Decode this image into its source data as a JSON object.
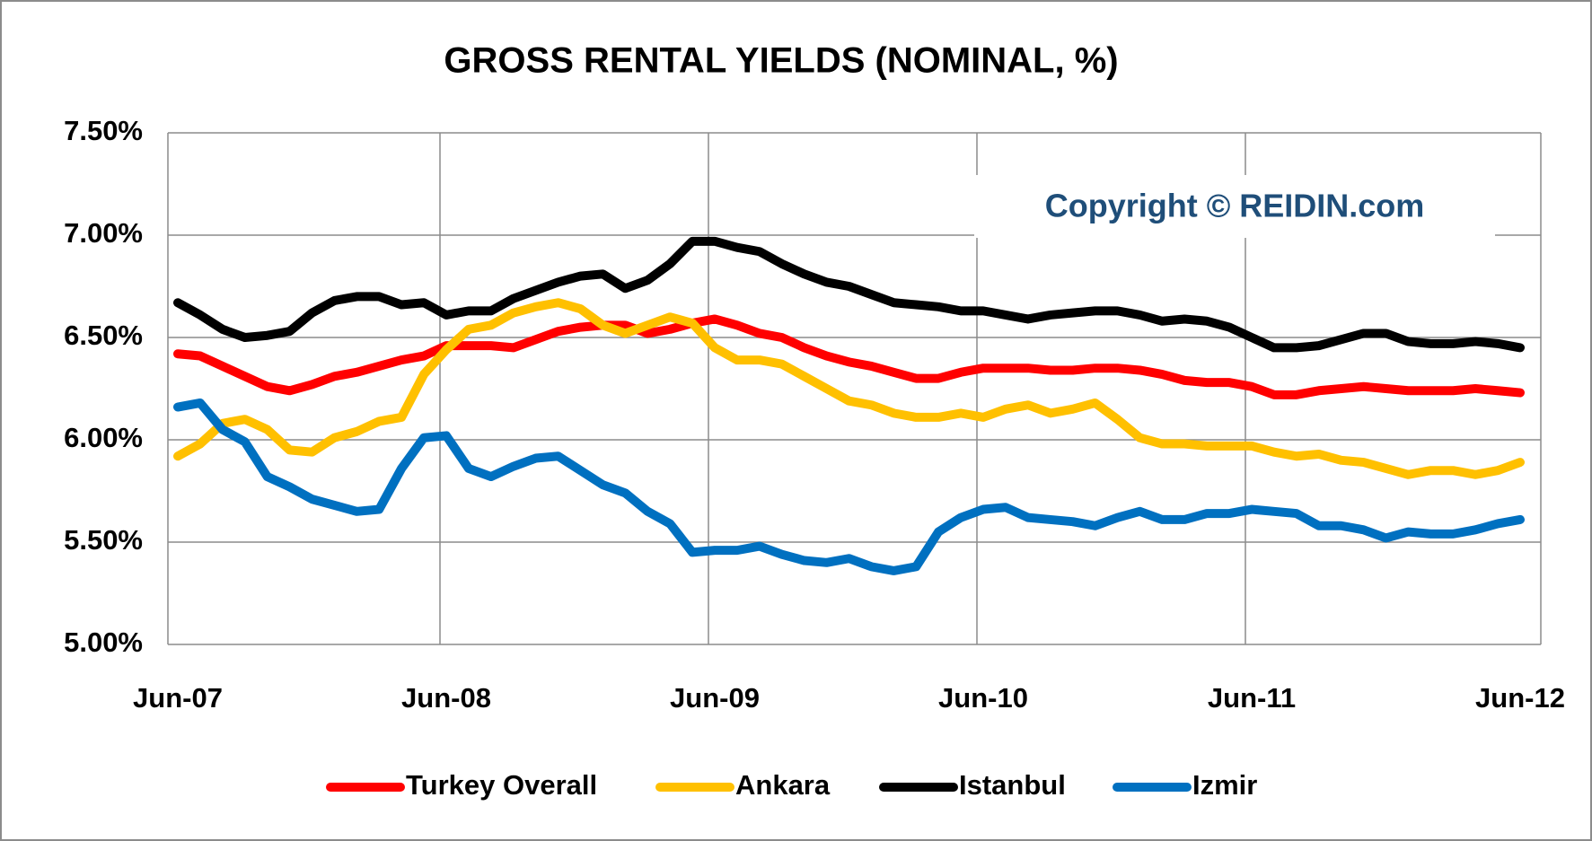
{
  "chart_data": {
    "type": "line",
    "title": "GROSS RENTAL YIELDS (NOMINAL, %)",
    "annotation": "Copyright © REIDIN.com",
    "categories": [
      "Jun-07",
      null,
      null,
      null,
      null,
      null,
      null,
      null,
      null,
      null,
      null,
      null,
      "Jun-08",
      null,
      null,
      null,
      null,
      null,
      null,
      null,
      null,
      null,
      null,
      null,
      "Jun-09",
      null,
      null,
      null,
      null,
      null,
      null,
      null,
      null,
      null,
      null,
      null,
      "Jun-10",
      null,
      null,
      null,
      null,
      null,
      null,
      null,
      null,
      null,
      null,
      null,
      "Jun-11",
      null,
      null,
      null,
      null,
      null,
      null,
      null,
      null,
      null,
      null,
      null,
      "Jun-12"
    ],
    "ylim": [
      5,
      7.5
    ],
    "yticks": [
      {
        "value": 5,
        "label": "5.00%"
      },
      {
        "value": 5.5,
        "label": "5.50%"
      },
      {
        "value": 6,
        "label": "6.00%"
      },
      {
        "value": 6.5,
        "label": "6.50%"
      },
      {
        "value": 7,
        "label": "7.00%"
      },
      {
        "value": 7.5,
        "label": "7.50%"
      }
    ],
    "grid": true,
    "legend": "bottom",
    "series": [
      {
        "name": "Turkey Overall",
        "color": "#ff0000",
        "values": [
          6.42,
          6.41,
          6.36,
          6.31,
          6.26,
          6.24,
          6.27,
          6.31,
          6.33,
          6.36,
          6.39,
          6.41,
          6.46,
          6.46,
          6.46,
          6.45,
          6.49,
          6.53,
          6.55,
          6.56,
          6.56,
          6.52,
          6.54,
          6.57,
          6.59,
          6.56,
          6.52,
          6.5,
          6.45,
          6.41,
          6.38,
          6.36,
          6.33,
          6.3,
          6.3,
          6.33,
          6.35,
          6.35,
          6.35,
          6.34,
          6.34,
          6.35,
          6.35,
          6.34,
          6.32,
          6.29,
          6.28,
          6.28,
          6.26,
          6.22,
          6.22,
          6.24,
          6.25,
          6.26,
          6.25,
          6.24,
          6.24,
          6.24,
          6.25,
          6.24,
          6.23
        ]
      },
      {
        "name": "Ankara",
        "color": "#ffc000",
        "values": [
          5.92,
          5.98,
          6.08,
          6.1,
          6.05,
          5.95,
          5.94,
          6.01,
          6.04,
          6.09,
          6.11,
          6.32,
          6.44,
          6.54,
          6.56,
          6.62,
          6.65,
          6.67,
          6.64,
          6.56,
          6.52,
          6.56,
          6.6,
          6.57,
          6.45,
          6.39,
          6.39,
          6.37,
          6.31,
          6.25,
          6.19,
          6.17,
          6.13,
          6.11,
          6.11,
          6.13,
          6.11,
          6.15,
          6.17,
          6.13,
          6.15,
          6.18,
          6.1,
          6.01,
          5.98,
          5.98,
          5.97,
          5.97,
          5.97,
          5.94,
          5.92,
          5.93,
          5.9,
          5.89,
          5.86,
          5.83,
          5.85,
          5.85,
          5.83,
          5.85,
          5.89
        ]
      },
      {
        "name": "Istanbul",
        "color": "#000000",
        "values": [
          6.67,
          6.61,
          6.54,
          6.5,
          6.51,
          6.53,
          6.62,
          6.68,
          6.7,
          6.7,
          6.66,
          6.67,
          6.61,
          6.63,
          6.63,
          6.69,
          6.73,
          6.77,
          6.8,
          6.81,
          6.74,
          6.78,
          6.86,
          6.97,
          6.97,
          6.94,
          6.92,
          6.86,
          6.81,
          6.77,
          6.75,
          6.71,
          6.67,
          6.66,
          6.65,
          6.63,
          6.63,
          6.61,
          6.59,
          6.61,
          6.62,
          6.63,
          6.63,
          6.61,
          6.58,
          6.59,
          6.58,
          6.55,
          6.5,
          6.45,
          6.45,
          6.46,
          6.49,
          6.52,
          6.52,
          6.48,
          6.47,
          6.47,
          6.48,
          6.47,
          6.45
        ]
      },
      {
        "name": "Izmir",
        "color": "#0070c0",
        "values": [
          6.16,
          6.18,
          6.05,
          5.99,
          5.82,
          5.77,
          5.71,
          5.68,
          5.65,
          5.66,
          5.86,
          6.01,
          6.02,
          5.86,
          5.82,
          5.87,
          5.91,
          5.92,
          5.85,
          5.78,
          5.74,
          5.65,
          5.59,
          5.45,
          5.46,
          5.46,
          5.48,
          5.44,
          5.41,
          5.4,
          5.42,
          5.38,
          5.36,
          5.38,
          5.55,
          5.62,
          5.66,
          5.67,
          5.62,
          5.61,
          5.6,
          5.58,
          5.62,
          5.65,
          5.61,
          5.61,
          5.64,
          5.64,
          5.66,
          5.65,
          5.64,
          5.58,
          5.58,
          5.56,
          5.52,
          5.55,
          5.54,
          5.54,
          5.56,
          5.59,
          5.61
        ]
      }
    ]
  }
}
